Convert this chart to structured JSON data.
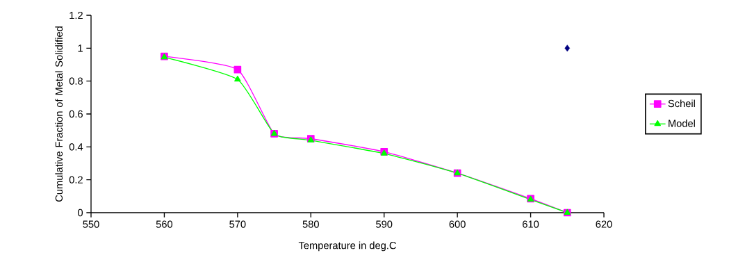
{
  "chart_data": {
    "type": "line",
    "xlabel": "Temperature in deg.C",
    "ylabel": "Cumulative Fraction of Metal Solidified",
    "x": [
      560,
      570,
      575,
      580,
      590,
      600,
      610,
      615
    ],
    "series": [
      {
        "name": "Scheil",
        "color": "#ff00ff",
        "marker": "square",
        "values": [
          0.95,
          0.87,
          0.48,
          0.45,
          0.37,
          0.24,
          0.085,
          0.0
        ]
      },
      {
        "name": "Model",
        "color": "#00ff00",
        "marker": "triangle",
        "values": [
          0.945,
          0.81,
          0.48,
          0.44,
          0.36,
          0.24,
          0.08,
          0.0
        ]
      },
      {
        "type": "scatter",
        "color": "#000080",
        "marker": "diamond",
        "x": [
          615
        ],
        "values": [
          1.0
        ]
      }
    ],
    "xlim": [
      550,
      620
    ],
    "xticks": [
      550,
      560,
      570,
      580,
      590,
      600,
      610,
      620
    ],
    "ylim": [
      0,
      1.2
    ],
    "yticks": [
      0,
      0.2,
      0.4,
      0.6,
      0.8,
      1,
      1.2
    ],
    "grid": false,
    "legend": "right"
  }
}
